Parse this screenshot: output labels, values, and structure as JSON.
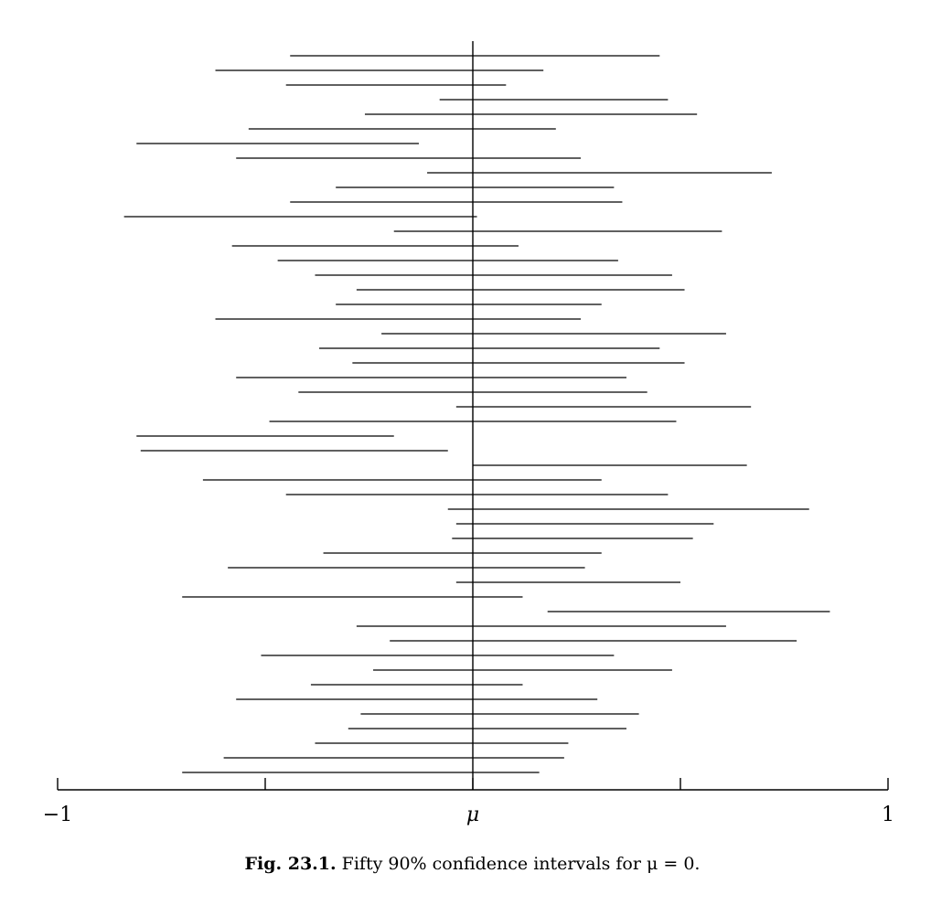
{
  "chart_data": {
    "type": "interval",
    "xlim": [
      -1,
      1
    ],
    "reference_x": 0,
    "x_ticks": [
      {
        "value": -1,
        "label": "−1"
      },
      {
        "value": -0.5,
        "label": ""
      },
      {
        "value": 0,
        "label": "μ"
      },
      {
        "value": 0.5,
        "label": ""
      },
      {
        "value": 1,
        "label": "1"
      }
    ],
    "intervals": [
      [
        -0.44,
        0.45
      ],
      [
        -0.62,
        0.17
      ],
      [
        -0.45,
        0.08
      ],
      [
        -0.08,
        0.47
      ],
      [
        -0.26,
        0.54
      ],
      [
        -0.54,
        0.2
      ],
      [
        -0.81,
        -0.13
      ],
      [
        -0.57,
        0.26
      ],
      [
        -0.11,
        0.72
      ],
      [
        -0.33,
        0.34
      ],
      [
        -0.44,
        0.36
      ],
      [
        -0.84,
        0.01
      ],
      [
        -0.19,
        0.6
      ],
      [
        -0.58,
        0.11
      ],
      [
        -0.47,
        0.35
      ],
      [
        -0.38,
        0.48
      ],
      [
        -0.28,
        0.51
      ],
      [
        -0.33,
        0.31
      ],
      [
        -0.62,
        0.26
      ],
      [
        -0.22,
        0.61
      ],
      [
        -0.37,
        0.45
      ],
      [
        -0.29,
        0.51
      ],
      [
        -0.57,
        0.37
      ],
      [
        -0.42,
        0.42
      ],
      [
        -0.04,
        0.67
      ],
      [
        -0.49,
        0.49
      ],
      [
        -0.81,
        -0.19
      ],
      [
        -0.8,
        -0.06
      ],
      [
        0.0,
        0.66
      ],
      [
        -0.65,
        0.31
      ],
      [
        -0.45,
        0.47
      ],
      [
        -0.06,
        0.81
      ],
      [
        -0.04,
        0.58
      ],
      [
        -0.05,
        0.53
      ],
      [
        -0.36,
        0.31
      ],
      [
        -0.59,
        0.27
      ],
      [
        -0.04,
        0.5
      ],
      [
        -0.7,
        0.12
      ],
      [
        0.18,
        0.86
      ],
      [
        -0.28,
        0.61
      ],
      [
        -0.2,
        0.78
      ],
      [
        -0.51,
        0.34
      ],
      [
        -0.24,
        0.48
      ],
      [
        -0.39,
        0.12
      ],
      [
        -0.57,
        0.3
      ],
      [
        -0.27,
        0.4
      ],
      [
        -0.3,
        0.37
      ],
      [
        -0.38,
        0.23
      ],
      [
        -0.6,
        0.22
      ],
      [
        -0.7,
        0.16
      ]
    ]
  },
  "caption": {
    "label": "Fig. 23.1.",
    "text": "Fifty 90% confidence intervals for μ = 0."
  }
}
